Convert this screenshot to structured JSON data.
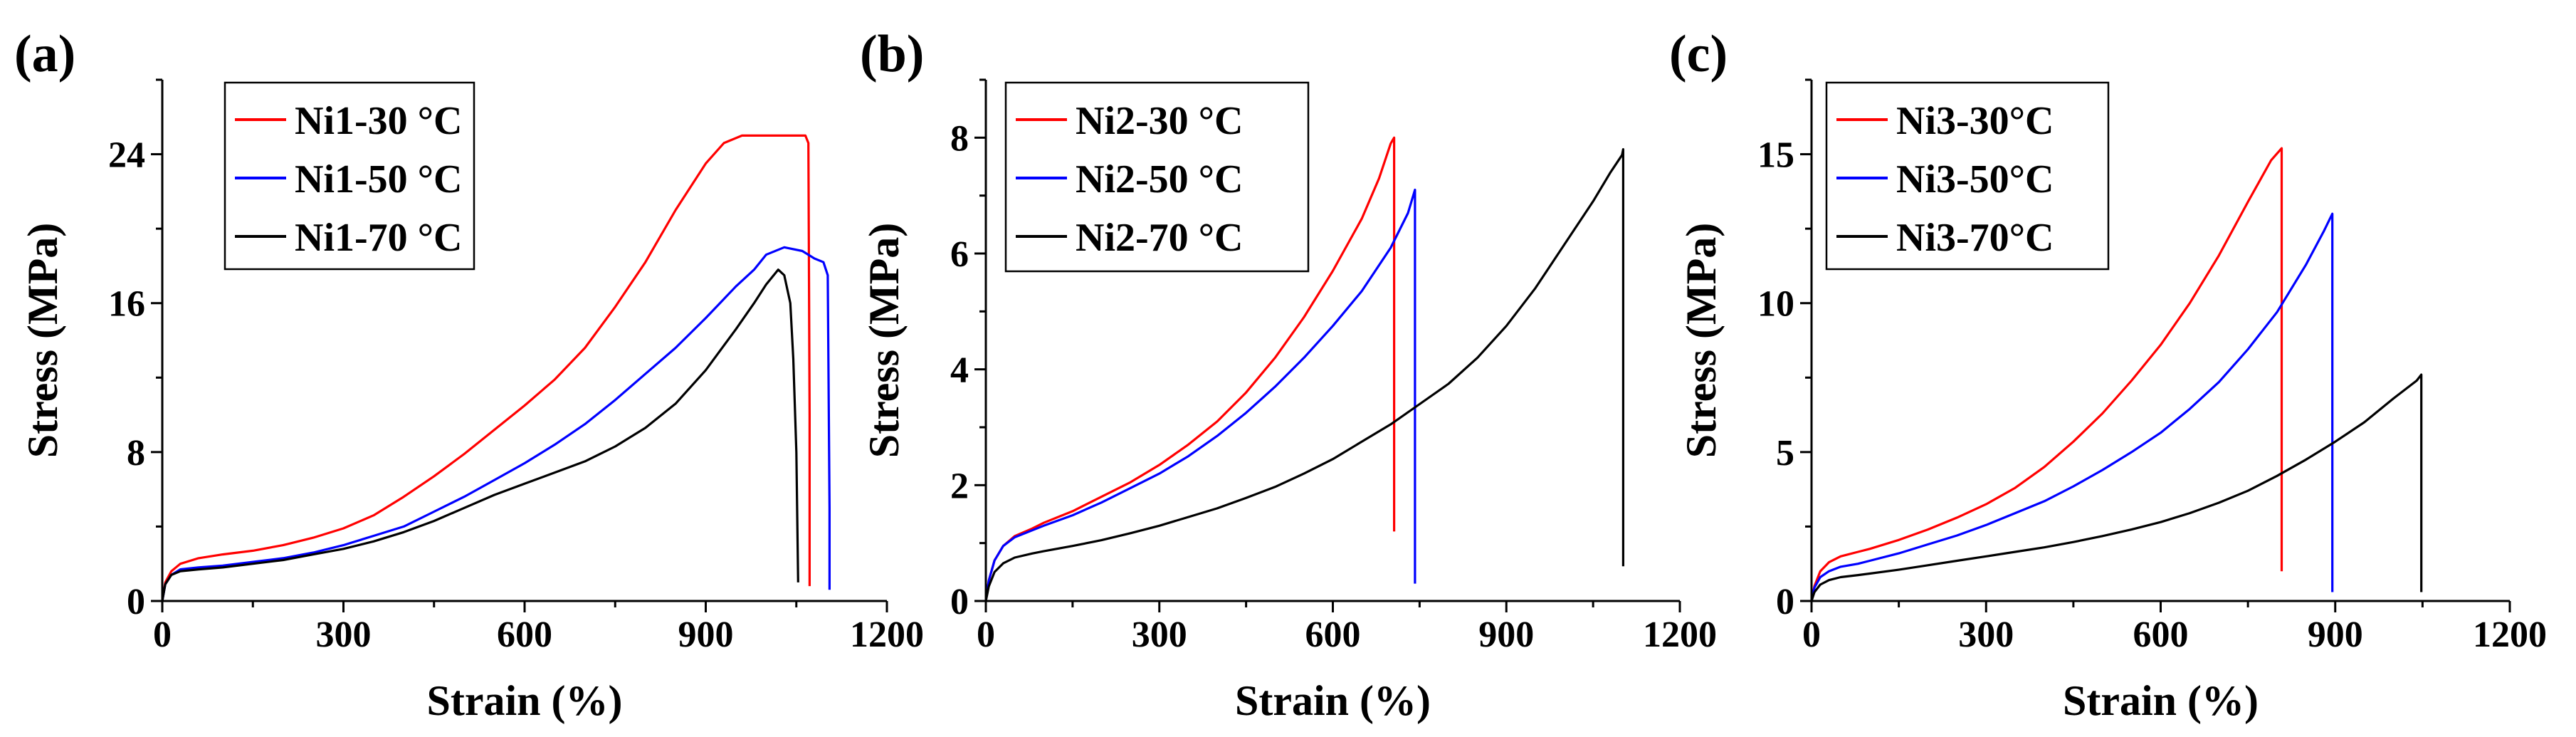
{
  "colors": {
    "red": "#ff0000",
    "blue": "#0000ff",
    "black": "#000000"
  },
  "chart_data": [
    {
      "type": "line",
      "panel_label": "(a)",
      "xlabel": "Strain (%)",
      "ylabel": "Stress (MPa)",
      "xlim": [
        0,
        1200
      ],
      "ylim": [
        0,
        28
      ],
      "xticks": [
        0,
        300,
        600,
        900,
        1200
      ],
      "yticks": [
        0,
        8,
        16,
        24
      ],
      "xtick_labels": [
        "0",
        "300",
        "600",
        "900",
        "1200"
      ],
      "ytick_labels": [
        "0",
        "8",
        "16",
        "24"
      ],
      "legend": "top-left",
      "series": [
        {
          "name": "Ni1-30 °C",
          "color": "#ff0000",
          "x": [
            0,
            5,
            15,
            30,
            60,
            100,
            150,
            200,
            250,
            300,
            350,
            400,
            450,
            500,
            550,
            600,
            650,
            700,
            750,
            800,
            850,
            900,
            930,
            960,
            1000,
            1040,
            1065,
            1070,
            1072,
            1072
          ],
          "y": [
            0,
            1.0,
            1.6,
            2.0,
            2.3,
            2.5,
            2.7,
            3.0,
            3.4,
            3.9,
            4.6,
            5.6,
            6.7,
            7.9,
            9.2,
            10.5,
            11.9,
            13.6,
            15.8,
            18.2,
            21.0,
            23.5,
            24.6,
            25.0,
            25.0,
            25.0,
            25.0,
            24.6,
            10,
            0.8
          ]
        },
        {
          "name": "Ni1-50 °C",
          "color": "#0000ff",
          "x": [
            0,
            5,
            15,
            30,
            60,
            100,
            150,
            200,
            250,
            300,
            350,
            400,
            450,
            500,
            550,
            600,
            650,
            700,
            750,
            800,
            850,
            900,
            950,
            980,
            1000,
            1030,
            1060,
            1080,
            1095,
            1102,
            1105,
            1105
          ],
          "y": [
            0,
            0.9,
            1.4,
            1.7,
            1.8,
            1.9,
            2.1,
            2.3,
            2.6,
            3.0,
            3.5,
            4.0,
            4.8,
            5.6,
            6.5,
            7.4,
            8.4,
            9.5,
            10.8,
            12.2,
            13.6,
            15.2,
            16.9,
            17.8,
            18.6,
            19.0,
            18.8,
            18.4,
            18.2,
            17.5,
            5,
            0.6
          ]
        },
        {
          "name": "Ni1-70 °C",
          "color": "#000000",
          "x": [
            0,
            5,
            15,
            30,
            60,
            100,
            150,
            200,
            250,
            300,
            350,
            400,
            450,
            500,
            550,
            600,
            650,
            700,
            750,
            800,
            850,
            900,
            950,
            980,
            1000,
            1020,
            1030,
            1040,
            1045,
            1050,
            1053
          ],
          "y": [
            0,
            0.9,
            1.4,
            1.6,
            1.7,
            1.8,
            2.0,
            2.2,
            2.5,
            2.8,
            3.2,
            3.7,
            4.3,
            5.0,
            5.7,
            6.3,
            6.9,
            7.5,
            8.3,
            9.3,
            10.6,
            12.4,
            14.6,
            16.0,
            17.0,
            17.8,
            17.5,
            16.0,
            13.0,
            8.0,
            1.0
          ]
        }
      ]
    },
    {
      "type": "line",
      "panel_label": "(b)",
      "xlabel": "Strain (%)",
      "ylabel": "Stress (MPa)",
      "xlim": [
        0,
        1200
      ],
      "ylim": [
        0,
        9
      ],
      "xticks": [
        0,
        300,
        600,
        900,
        1200
      ],
      "yticks": [
        0,
        2,
        4,
        6,
        8
      ],
      "xtick_labels": [
        "0",
        "300",
        "600",
        "900",
        "1200"
      ],
      "ytick_labels": [
        "0",
        "2",
        "4",
        "6",
        "8"
      ],
      "legend": "top-left",
      "series": [
        {
          "name": "Ni2-30 °C",
          "color": "#ff0000",
          "x": [
            0,
            5,
            15,
            30,
            50,
            80,
            100,
            150,
            200,
            250,
            300,
            350,
            400,
            450,
            500,
            550,
            600,
            650,
            680,
            700,
            706,
            706
          ],
          "y": [
            0,
            0.35,
            0.7,
            0.95,
            1.12,
            1.25,
            1.35,
            1.55,
            1.8,
            2.05,
            2.35,
            2.7,
            3.1,
            3.6,
            4.2,
            4.9,
            5.7,
            6.6,
            7.3,
            7.9,
            8.0,
            1.2
          ]
        },
        {
          "name": "Ni2-50 °C",
          "color": "#0000ff",
          "x": [
            0,
            5,
            15,
            30,
            50,
            80,
            100,
            150,
            200,
            250,
            300,
            350,
            400,
            450,
            500,
            550,
            600,
            650,
            700,
            730,
            742,
            742
          ],
          "y": [
            0,
            0.35,
            0.7,
            0.95,
            1.1,
            1.22,
            1.3,
            1.48,
            1.7,
            1.95,
            2.2,
            2.5,
            2.85,
            3.25,
            3.7,
            4.2,
            4.75,
            5.35,
            6.1,
            6.7,
            7.1,
            0.3
          ]
        },
        {
          "name": "Ni2-70 °C",
          "color": "#000000",
          "x": [
            0,
            5,
            15,
            30,
            50,
            80,
            100,
            150,
            200,
            250,
            300,
            350,
            400,
            450,
            500,
            550,
            600,
            650,
            700,
            750,
            800,
            850,
            900,
            950,
            1000,
            1050,
            1080,
            1100,
            1102,
            1102
          ],
          "y": [
            0,
            0.25,
            0.5,
            0.65,
            0.75,
            0.82,
            0.86,
            0.95,
            1.05,
            1.17,
            1.3,
            1.45,
            1.6,
            1.78,
            1.97,
            2.2,
            2.45,
            2.75,
            3.05,
            3.4,
            3.75,
            4.2,
            4.75,
            5.4,
            6.15,
            6.9,
            7.4,
            7.7,
            7.8,
            0.6
          ]
        }
      ]
    },
    {
      "type": "line",
      "panel_label": "(c)",
      "xlabel": "Strain (%)",
      "ylabel": "Stress (MPa)",
      "xlim": [
        0,
        1200
      ],
      "ylim": [
        0,
        17.5
      ],
      "xticks": [
        0,
        300,
        600,
        900,
        1200
      ],
      "yticks": [
        0,
        5,
        10,
        15
      ],
      "xtick_labels": [
        "0",
        "300",
        "600",
        "900",
        "1200"
      ],
      "ytick_labels": [
        "0",
        "5",
        "10",
        "15"
      ],
      "legend": "top-left",
      "series": [
        {
          "name": "Ni3-30°C",
          "color": "#ff0000",
          "x": [
            0,
            5,
            15,
            30,
            50,
            80,
            100,
            150,
            200,
            250,
            300,
            350,
            400,
            450,
            500,
            550,
            600,
            650,
            700,
            750,
            790,
            808,
            808
          ],
          "y": [
            0,
            0.5,
            1.0,
            1.3,
            1.5,
            1.65,
            1.75,
            2.05,
            2.4,
            2.8,
            3.25,
            3.8,
            4.5,
            5.35,
            6.3,
            7.4,
            8.6,
            10.0,
            11.6,
            13.4,
            14.8,
            15.2,
            1.0
          ]
        },
        {
          "name": "Ni3-50°C",
          "color": "#0000ff",
          "x": [
            0,
            5,
            15,
            30,
            50,
            80,
            100,
            150,
            200,
            250,
            300,
            350,
            400,
            450,
            500,
            550,
            600,
            650,
            700,
            750,
            800,
            850,
            880,
            895,
            895
          ],
          "y": [
            0,
            0.45,
            0.8,
            1.0,
            1.15,
            1.25,
            1.35,
            1.6,
            1.9,
            2.2,
            2.55,
            2.95,
            3.35,
            3.85,
            4.4,
            5.0,
            5.65,
            6.45,
            7.35,
            8.45,
            9.7,
            11.3,
            12.4,
            13.0,
            0.3
          ]
        },
        {
          "name": "Ni3-70°C",
          "color": "#000000",
          "x": [
            0,
            5,
            15,
            30,
            50,
            80,
            100,
            150,
            200,
            250,
            300,
            350,
            400,
            450,
            500,
            550,
            600,
            650,
            700,
            750,
            800,
            850,
            900,
            950,
            1000,
            1040,
            1048,
            1048
          ],
          "y": [
            0,
            0.3,
            0.55,
            0.7,
            0.8,
            0.87,
            0.92,
            1.05,
            1.2,
            1.35,
            1.5,
            1.65,
            1.8,
            1.98,
            2.18,
            2.4,
            2.65,
            2.95,
            3.3,
            3.7,
            4.2,
            4.75,
            5.35,
            6.0,
            6.8,
            7.4,
            7.6,
            0.3
          ]
        }
      ]
    }
  ]
}
